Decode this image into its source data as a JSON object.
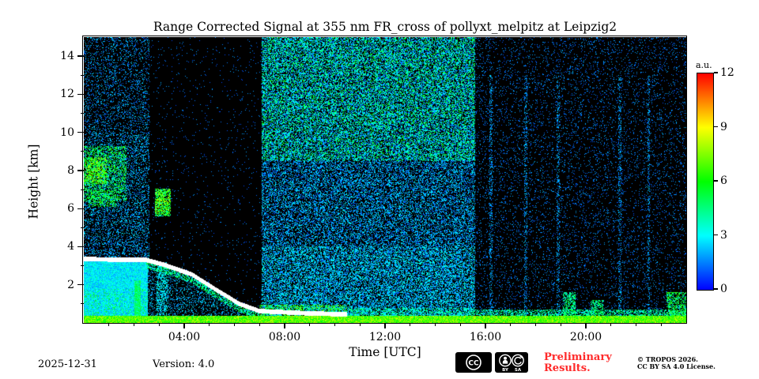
{
  "chart_data": {
    "type": "heatmap",
    "title": "Range Corrected Signal at 355 nm FR_cross of pollyxt_melpitz at Leipzig2",
    "xlabel": "Time [UTC]",
    "ylabel": "Height [km]",
    "colorbar_label": "a.u.",
    "x_range_hours": [
      0,
      24
    ],
    "x_major_tick_hours": [
      4,
      8,
      12,
      16,
      20
    ],
    "x_major_tick_labels": [
      "04:00",
      "08:00",
      "12:00",
      "16:00",
      "20:00"
    ],
    "y_range_km": [
      0,
      15
    ],
    "y_major_ticks_km": [
      2,
      4,
      6,
      8,
      10,
      12,
      14
    ],
    "y_minor_ticks_km": [
      1,
      3,
      5,
      7,
      9,
      11,
      13
    ],
    "colorbar_range": [
      0,
      12
    ],
    "colorbar_ticks": [
      12,
      9,
      6,
      3,
      0
    ],
    "colormap": "jet-like blue-cyan-green-yellow-orange-red; zero signal renders black; above-range renders white",
    "grid": false,
    "seed": 42,
    "features": [
      {
        "kind": "speckle",
        "t": [
          0,
          2.6
        ],
        "h": [
          3.3,
          15
        ],
        "p": 0.2,
        "v": [
          0.8,
          2.8
        ],
        "note": "night background noise above boundary layer"
      },
      {
        "kind": "speckle",
        "t": [
          0,
          2.6
        ],
        "h": [
          3.3,
          10
        ],
        "p": 0.12,
        "v": [
          1.2,
          3.2
        ],
        "note": "denser mid-level night noise"
      },
      {
        "kind": "solid",
        "t": [
          0,
          2.55
        ],
        "h": [
          0,
          3.35
        ],
        "v": [
          1.6,
          3.2
        ],
        "note": "nocturnal residual layer blue fill up to 3.35 km"
      },
      {
        "kind": "speckle",
        "t": [
          0,
          2.55
        ],
        "h": [
          0,
          3.35
        ],
        "p": 0.5,
        "v": [
          2.2,
          4.2
        ],
        "note": "cyan texture inside residual layer"
      },
      {
        "kind": "speckle",
        "t": [
          0,
          2.55
        ],
        "h": [
          0.3,
          1.8
        ],
        "p": 0.15,
        "v": [
          4,
          6.5
        ],
        "note": "green streaks at low levels"
      },
      {
        "kind": "speckle",
        "t": [
          0,
          1.7
        ],
        "h": [
          6.4,
          9.3
        ],
        "p": 0.4,
        "v": [
          3,
          7
        ],
        "note": "lofted aerosol layer 6.5-9 km before 02:00"
      },
      {
        "kind": "speckle",
        "t": [
          0,
          0.9
        ],
        "h": [
          7.3,
          8.7
        ],
        "p": 0.5,
        "v": [
          5,
          8.5
        ],
        "note": "strong orange patches near 8 km before 01:00"
      },
      {
        "kind": "speckle",
        "t": [
          0.2,
          1.3
        ],
        "h": [
          6.1,
          7.0
        ],
        "p": 0.35,
        "v": [
          4,
          7
        ],
        "note": "secondary lofted layer 6-7 km"
      },
      {
        "kind": "stripe",
        "t": [
          2.02,
          2.28
        ],
        "h": [
          0,
          2.25
        ],
        "p": 0.9,
        "v": [
          4,
          5.5
        ],
        "note": "bright green column near 02:10"
      },
      {
        "kind": "speckle",
        "t": [
          2.55,
          7.1
        ],
        "h": [
          0,
          15
        ],
        "p": 0.02,
        "v": [
          0.8,
          2
        ],
        "note": "dark quiet zone 02:30-07:00"
      },
      {
        "kind": "blob",
        "t": [
          2.85,
          3.45
        ],
        "h": [
          5.6,
          7.05
        ],
        "p": 0.75,
        "v": [
          3.5,
          8.5
        ],
        "note": "bright cloud/aerosol patch ~03:15 at 6-7 km"
      },
      {
        "kind": "blob",
        "t": [
          2.9,
          3.35
        ],
        "h": [
          0.4,
          3.2
        ],
        "p": 0.45,
        "v": [
          2,
          4
        ],
        "note": "blue column below the patch"
      },
      {
        "kind": "fillcap",
        "points": [
          [
            2.5,
            3.3
          ],
          [
            3.2,
            3.05
          ],
          [
            4.3,
            2.55
          ],
          [
            5.2,
            1.8
          ],
          [
            6.2,
            1.0
          ],
          [
            7.0,
            0.62
          ]
        ],
        "t": [
          2.5,
          7.0
        ],
        "band": 0.45,
        "p": 0.55,
        "v": [
          2.5,
          6
        ],
        "note": "colorful band just under descending layer top"
      },
      {
        "kind": "fillcap",
        "points": [
          [
            2.5,
            3.3
          ],
          [
            3.2,
            3.05
          ],
          [
            4.3,
            2.55
          ],
          [
            5.2,
            1.8
          ],
          [
            6.2,
            1.0
          ],
          [
            7.0,
            0.62
          ]
        ],
        "t": [
          2.5,
          7.0
        ],
        "band": 4,
        "p": 0.22,
        "v": [
          1.4,
          3
        ],
        "note": "blue fill of descending layer body"
      },
      {
        "kind": "speckle",
        "t": [
          7.1,
          15.6
        ],
        "h": [
          0,
          15
        ],
        "p": 0.42,
        "v": [
          0.8,
          3.2
        ],
        "note": "daytime background noise full column 07:00-15:30"
      },
      {
        "kind": "speckle",
        "t": [
          7.1,
          15.6
        ],
        "h": [
          8.5,
          15
        ],
        "p": 0.3,
        "v": [
          2,
          6.5
        ],
        "note": "green-yellow speckle at high altitude daytime"
      },
      {
        "kind": "speckle",
        "t": [
          7.1,
          15.6
        ],
        "h": [
          0,
          4
        ],
        "p": 0.22,
        "v": [
          1.5,
          4
        ],
        "note": "low level daytime noise"
      },
      {
        "kind": "speckle",
        "t": [
          7,
          10.5
        ],
        "h": [
          0.3,
          0.95
        ],
        "p": 0.5,
        "v": [
          3,
          8
        ],
        "note": "strong near-surface aerosol 07:00-10:30"
      },
      {
        "kind": "speckle",
        "t": [
          10.5,
          15.6
        ],
        "h": [
          0.3,
          0.8
        ],
        "p": 0.4,
        "v": [
          2.5,
          5.5
        ],
        "note": "moderate near-surface aerosol midday"
      },
      {
        "kind": "speckle",
        "t": [
          15.6,
          24
        ],
        "h": [
          0,
          15
        ],
        "p": 0.09,
        "v": [
          0.8,
          2.2
        ],
        "note": "evening sparse noise"
      },
      {
        "kind": "speckle",
        "t": [
          15.6,
          24
        ],
        "h": [
          0,
          0.7
        ],
        "p": 0.5,
        "v": [
          2.5,
          5.5
        ],
        "note": "shallow evening surface layer"
      },
      {
        "kind": "blob",
        "t": [
          19.1,
          19.6
        ],
        "h": [
          0,
          1.6
        ],
        "p": 0.55,
        "v": [
          3,
          6
        ],
        "note": "plume ~19:20"
      },
      {
        "kind": "blob",
        "t": [
          20.2,
          20.7
        ],
        "h": [
          0,
          1.2
        ],
        "p": 0.5,
        "v": [
          3,
          6
        ],
        "note": "plume ~20:30"
      },
      {
        "kind": "blob",
        "t": [
          23.2,
          24
        ],
        "h": [
          0,
          1.6
        ],
        "p": 0.55,
        "v": [
          3.5,
          7
        ],
        "note": "plume before midnight"
      },
      {
        "kind": "vline",
        "t": [
          16.15,
          16.27
        ],
        "h": [
          0,
          13
        ],
        "p": 0.3,
        "v": [
          1,
          2.8
        ],
        "note": "faint vertical streak"
      },
      {
        "kind": "vline",
        "t": [
          17.55,
          17.67
        ],
        "h": [
          0,
          13
        ],
        "p": 0.3,
        "v": [
          1,
          2.8
        ],
        "note": "faint vertical streak"
      },
      {
        "kind": "vline",
        "t": [
          18.85,
          18.95
        ],
        "h": [
          0,
          13
        ],
        "p": 0.3,
        "v": [
          1,
          2.8
        ],
        "note": "faint vertical streak"
      },
      {
        "kind": "vline",
        "t": [
          21.3,
          21.42
        ],
        "h": [
          0,
          13
        ],
        "p": 0.3,
        "v": [
          1,
          2.8
        ],
        "note": "faint vertical streak"
      },
      {
        "kind": "vline",
        "t": [
          22.45,
          22.55
        ],
        "h": [
          0,
          13
        ],
        "p": 0.3,
        "v": [
          1,
          2.8
        ],
        "note": "faint vertical streak"
      },
      {
        "kind": "surface",
        "t": [
          0,
          24
        ],
        "h": [
          0,
          0.38
        ],
        "p": 1,
        "v": [
          5.5,
          8.5
        ],
        "note": "strong near-surface signal along entire day"
      },
      {
        "kind": "cap",
        "points": [
          [
            0,
            3.35
          ],
          [
            2.5,
            3.3
          ],
          [
            3.2,
            3.05
          ],
          [
            4.3,
            2.55
          ],
          [
            5.2,
            1.8
          ],
          [
            6.2,
            1.0
          ],
          [
            7.0,
            0.62
          ],
          [
            9.0,
            0.5
          ],
          [
            10.5,
            0.45
          ]
        ],
        "thickness": 0.12,
        "tmax": 10.5,
        "v": 12.5,
        "note": "white boundary-layer top line descending from 3.35 km to ~0.5 km"
      }
    ]
  },
  "footer": {
    "date": "2025-12-31",
    "version": "Version: 4.0",
    "preliminary": "Preliminary Results.",
    "copyright": "© TROPOS 2026.",
    "license": "CC BY SA 4.0 License.",
    "badge_cc": "CC",
    "badge_by": "BY",
    "badge_sa": "SA"
  },
  "colors": {
    "preliminary_red": "#ff2a2a",
    "axis": "#000000",
    "plot_background": "#000000"
  }
}
